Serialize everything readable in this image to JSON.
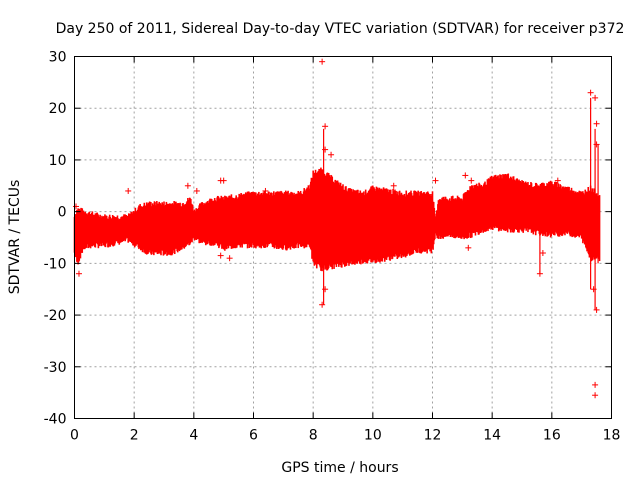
{
  "chart_data": {
    "type": "scatter",
    "title": "Day 250 of 2011, Sidereal Day-to-day VTEC variation (SDTVAR) for receiver p372",
    "xlabel": "GPS time / hours",
    "ylabel": "SDTVAR / TECUs",
    "xlim": [
      0,
      18
    ],
    "ylim": [
      -40,
      30
    ],
    "x_ticks": [
      0,
      2,
      4,
      6,
      8,
      10,
      12,
      14,
      16,
      18
    ],
    "y_ticks": [
      -40,
      -30,
      -20,
      -10,
      0,
      10,
      20,
      30
    ],
    "grid": true,
    "marker": "+",
    "color": "#ff0000",
    "envelope": {
      "x": [
        0,
        0.1,
        0.3,
        0.6,
        1.0,
        1.4,
        1.8,
        2.2,
        2.5,
        2.8,
        3.2,
        3.6,
        3.9,
        4.0,
        4.3,
        4.7,
        5.0,
        5.5,
        6.0,
        6.5,
        7.0,
        7.6,
        7.9,
        8.0,
        8.3,
        8.7,
        9.2,
        9.7,
        10.0,
        10.5,
        11.0,
        11.5,
        12.0,
        12.1,
        12.2,
        12.6,
        13.0,
        13.3,
        13.7,
        14.0,
        14.5,
        15.0,
        15.5,
        16.0,
        16.5,
        17.0,
        17.3,
        17.6
      ],
      "upper": [
        -1,
        0.5,
        0,
        -0.5,
        -1,
        -1,
        -1,
        1,
        1.5,
        1.5,
        1.5,
        1.5,
        2.5,
        0,
        1.5,
        2.5,
        2.5,
        3,
        3.5,
        3.5,
        3.5,
        3.5,
        5,
        7.5,
        8,
        6,
        4,
        3.5,
        4.5,
        4,
        3.5,
        3.5,
        3.5,
        -2,
        2.5,
        2.5,
        2.5,
        5,
        5,
        6.5,
        7,
        5.5,
        5,
        5.5,
        4.5,
        3.5,
        4.5,
        3
      ],
      "lower": [
        -8,
        -10,
        -7,
        -6.5,
        -6.5,
        -6,
        -5.5,
        -7,
        -8,
        -8,
        -8,
        -7,
        -6,
        -5,
        -6,
        -6,
        -7,
        -6.5,
        -6.5,
        -6.5,
        -7,
        -6.5,
        -6.5,
        -10,
        -11,
        -10.5,
        -10,
        -9.5,
        -9.5,
        -9,
        -8.5,
        -7.5,
        -7.5,
        -4,
        -5,
        -4.5,
        -5,
        -4.5,
        -3.5,
        -3,
        -3.5,
        -3.5,
        -4,
        -4.5,
        -4,
        -5,
        -9,
        -9
      ]
    },
    "outlier_points": [
      {
        "x": 0.05,
        "y": 1
      },
      {
        "x": 0.15,
        "y": -12
      },
      {
        "x": 1.8,
        "y": 4
      },
      {
        "x": 2.8,
        "y": 0.5
      },
      {
        "x": 3.8,
        "y": 5
      },
      {
        "x": 4.1,
        "y": 4
      },
      {
        "x": 4.9,
        "y": 6
      },
      {
        "x": 5.0,
        "y": 6
      },
      {
        "x": 4.9,
        "y": -8.5
      },
      {
        "x": 5.2,
        "y": -9
      },
      {
        "x": 5.6,
        "y": 3
      },
      {
        "x": 6.4,
        "y": 4
      },
      {
        "x": 8.3,
        "y": 29
      },
      {
        "x": 8.4,
        "y": 16.5
      },
      {
        "x": 8.4,
        "y": 12
      },
      {
        "x": 8.6,
        "y": 11
      },
      {
        "x": 8.4,
        "y": -15
      },
      {
        "x": 8.3,
        "y": -18
      },
      {
        "x": 10.7,
        "y": 5
      },
      {
        "x": 12.1,
        "y": 6
      },
      {
        "x": 13.1,
        "y": 7
      },
      {
        "x": 13.2,
        "y": -7
      },
      {
        "x": 13.3,
        "y": 6
      },
      {
        "x": 15.6,
        "y": -12
      },
      {
        "x": 15.7,
        "y": -8
      },
      {
        "x": 16.2,
        "y": 6
      },
      {
        "x": 17.3,
        "y": 23
      },
      {
        "x": 17.45,
        "y": 22
      },
      {
        "x": 17.5,
        "y": 17
      },
      {
        "x": 17.5,
        "y": 13
      },
      {
        "x": 17.4,
        "y": -15
      },
      {
        "x": 17.5,
        "y": -19
      },
      {
        "x": 17.45,
        "y": -33.5
      },
      {
        "x": 17.45,
        "y": -35.5
      }
    ],
    "spikes": [
      {
        "x": 8.35,
        "y_min": -18,
        "y_max": 16
      },
      {
        "x": 15.6,
        "y_min": -12,
        "y_max": 4
      },
      {
        "x": 17.3,
        "y_min": -15,
        "y_max": 22
      },
      {
        "x": 17.45,
        "y_min": -19,
        "y_max": 16
      },
      {
        "x": 17.55,
        "y_min": -10,
        "y_max": 13
      }
    ]
  }
}
